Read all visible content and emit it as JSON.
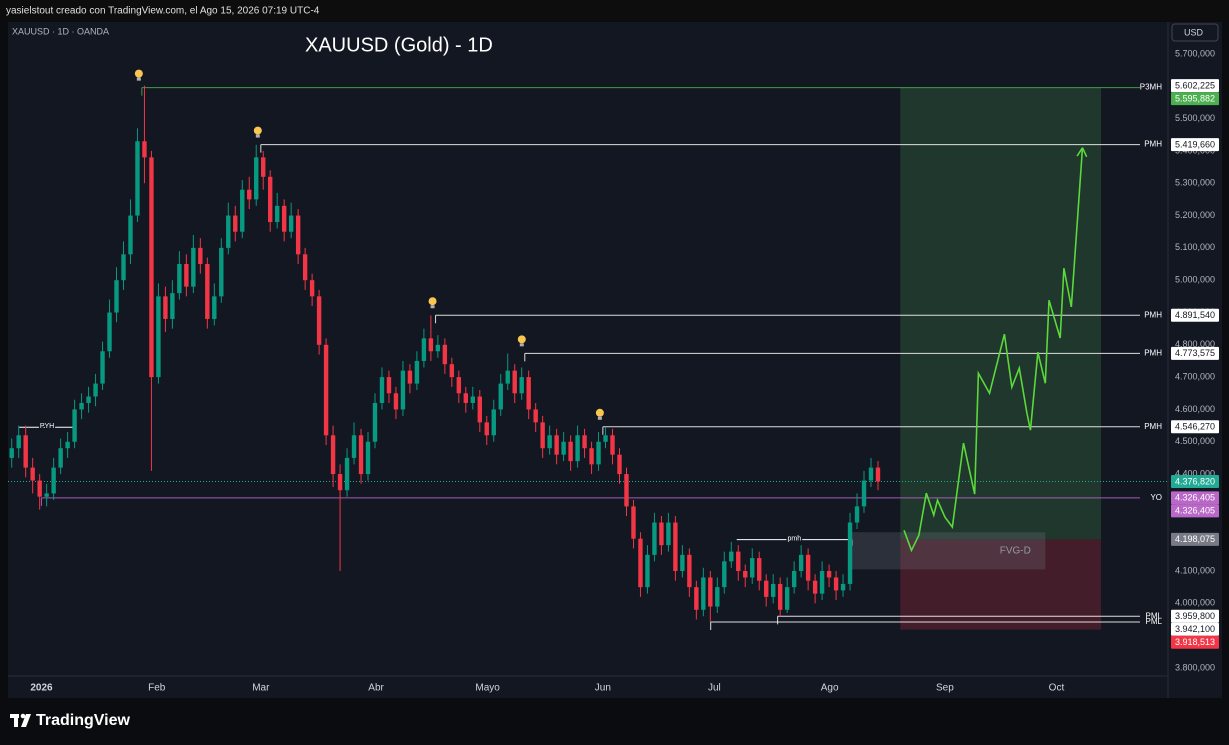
{
  "header": "yasielstout creado con TradingView.com, el Ago 15, 2026 07:19 UTC-4",
  "branding": "TradingView",
  "chart_data": {
    "type": "candlestick",
    "title": "XAUUSD (Gold) - 1D",
    "symbol": "XAUUSD · 1D · OANDA",
    "currency": "USD",
    "up_color": "#089981",
    "down_color": "#f23645",
    "xlim": [
      -9,
      303
    ],
    "xticks": [
      {
        "value": 0,
        "label": "2026"
      },
      {
        "value": 31,
        "label": "Feb"
      },
      {
        "value": 59,
        "label": "Mar"
      },
      {
        "value": 90,
        "label": "Abr"
      },
      {
        "value": 120,
        "label": "Mayo"
      },
      {
        "value": 151,
        "label": "Jun"
      },
      {
        "value": 181,
        "label": "Jul"
      },
      {
        "value": 212,
        "label": "Ago"
      },
      {
        "value": 243,
        "label": "Sep"
      },
      {
        "value": 273,
        "label": "Oct"
      }
    ],
    "ylim": [
      3707,
      5799
    ],
    "yticks": [
      {
        "value": 3800,
        "label": "3.800,000"
      },
      {
        "value": 3900,
        "label": "3.900,000"
      },
      {
        "value": 4000,
        "label": "4.000,000"
      },
      {
        "value": 4100,
        "label": "4.100,000"
      },
      {
        "value": 4200,
        "label": "4.200,000"
      },
      {
        "value": 4300,
        "label": "4.300,000"
      },
      {
        "value": 4400,
        "label": "4.400,000"
      },
      {
        "value": 4500,
        "label": "4.500,000"
      },
      {
        "value": 4600,
        "label": "4.600,000"
      },
      {
        "value": 4700,
        "label": "4.700,000"
      },
      {
        "value": 4800,
        "label": "4.800,000"
      },
      {
        "value": 4900,
        "label": "4.900,000"
      },
      {
        "value": 5000,
        "label": "5.000,000"
      },
      {
        "value": 5100,
        "label": "5.100,000"
      },
      {
        "value": 5200,
        "label": "5.200,000"
      },
      {
        "value": 5300,
        "label": "5.300,000"
      },
      {
        "value": 5400,
        "label": "5.400,000"
      },
      {
        "value": 5500,
        "label": "5.500,000"
      },
      {
        "value": 5600,
        "label": "5.600,000"
      },
      {
        "value": 5700,
        "label": "5.700,000"
      }
    ],
    "candles": [
      [
        4450,
        4510,
        4420,
        4480
      ],
      [
        4480,
        4550,
        4450,
        4520
      ],
      [
        4520,
        4550,
        4390,
        4420
      ],
      [
        4420,
        4450,
        4340,
        4380
      ],
      [
        4380,
        4400,
        4290,
        4330
      ],
      [
        4330,
        4370,
        4300,
        4340
      ],
      [
        4340,
        4450,
        4320,
        4420
      ],
      [
        4420,
        4510,
        4400,
        4480
      ],
      [
        4480,
        4530,
        4450,
        4500
      ],
      [
        4500,
        4630,
        4480,
        4600
      ],
      [
        4600,
        4650,
        4570,
        4620
      ],
      [
        4620,
        4670,
        4590,
        4640
      ],
      [
        4640,
        4710,
        4610,
        4680
      ],
      [
        4680,
        4810,
        4660,
        4780
      ],
      [
        4780,
        4940,
        4760,
        4900
      ],
      [
        4900,
        5040,
        4870,
        5000
      ],
      [
        5000,
        5120,
        4970,
        5080
      ],
      [
        5080,
        5250,
        5050,
        5200
      ],
      [
        5200,
        5470,
        5180,
        5430
      ],
      [
        5430,
        5602,
        5300,
        5380
      ],
      [
        5380,
        5400,
        4410,
        4700
      ],
      [
        4700,
        4990,
        4680,
        4950
      ],
      [
        4950,
        4980,
        4840,
        4880
      ],
      [
        4880,
        5000,
        4850,
        4960
      ],
      [
        4960,
        5090,
        4940,
        5050
      ],
      [
        5050,
        5080,
        4950,
        4980
      ],
      [
        4980,
        5140,
        4960,
        5100
      ],
      [
        5100,
        5130,
        5020,
        5050
      ],
      [
        5050,
        5070,
        4850,
        4880
      ],
      [
        4880,
        4990,
        4860,
        4950
      ],
      [
        4950,
        5130,
        4930,
        5100
      ],
      [
        5100,
        5240,
        5080,
        5200
      ],
      [
        5200,
        5230,
        5120,
        5150
      ],
      [
        5150,
        5310,
        5130,
        5280
      ],
      [
        5280,
        5320,
        5220,
        5250
      ],
      [
        5250,
        5419,
        5230,
        5380
      ],
      [
        5380,
        5400,
        5280,
        5320
      ],
      [
        5320,
        5340,
        5150,
        5180
      ],
      [
        5180,
        5270,
        5160,
        5230
      ],
      [
        5230,
        5250,
        5120,
        5150
      ],
      [
        5150,
        5240,
        5130,
        5200
      ],
      [
        5200,
        5220,
        5050,
        5080
      ],
      [
        5080,
        5100,
        4970,
        5000
      ],
      [
        5000,
        5020,
        4920,
        4950
      ],
      [
        4950,
        4970,
        4770,
        4800
      ],
      [
        4800,
        4820,
        4490,
        4520
      ],
      [
        4520,
        4550,
        4360,
        4400
      ],
      [
        4400,
        4430,
        4100,
        4350
      ],
      [
        4350,
        4480,
        4330,
        4450
      ],
      [
        4450,
        4560,
        4430,
        4520
      ],
      [
        4520,
        4540,
        4370,
        4400
      ],
      [
        4400,
        4530,
        4380,
        4500
      ],
      [
        4500,
        4650,
        4480,
        4620
      ],
      [
        4620,
        4730,
        4600,
        4700
      ],
      [
        4700,
        4720,
        4620,
        4650
      ],
      [
        4650,
        4670,
        4570,
        4600
      ],
      [
        4600,
        4750,
        4580,
        4720
      ],
      [
        4720,
        4740,
        4650,
        4680
      ],
      [
        4680,
        4780,
        4660,
        4750
      ],
      [
        4750,
        4850,
        4730,
        4820
      ],
      [
        4820,
        4891,
        4750,
        4780
      ],
      [
        4780,
        4830,
        4760,
        4800
      ],
      [
        4800,
        4820,
        4710,
        4740
      ],
      [
        4740,
        4760,
        4670,
        4700
      ],
      [
        4700,
        4720,
        4620,
        4650
      ],
      [
        4650,
        4670,
        4590,
        4620
      ],
      [
        4620,
        4670,
        4600,
        4640
      ],
      [
        4640,
        4660,
        4530,
        4560
      ],
      [
        4560,
        4580,
        4490,
        4520
      ],
      [
        4520,
        4630,
        4500,
        4600
      ],
      [
        4600,
        4710,
        4580,
        4680
      ],
      [
        4680,
        4773,
        4660,
        4720
      ],
      [
        4720,
        4740,
        4620,
        4650
      ],
      [
        4650,
        4730,
        4630,
        4700
      ],
      [
        4700,
        4720,
        4570,
        4600
      ],
      [
        4600,
        4620,
        4530,
        4560
      ],
      [
        4560,
        4580,
        4450,
        4480
      ],
      [
        4480,
        4550,
        4460,
        4520
      ],
      [
        4520,
        4540,
        4430,
        4460
      ],
      [
        4460,
        4530,
        4440,
        4500
      ],
      [
        4500,
        4520,
        4410,
        4440
      ],
      [
        4440,
        4550,
        4420,
        4520
      ],
      [
        4520,
        4540,
        4450,
        4480
      ],
      [
        4480,
        4500,
        4400,
        4430
      ],
      [
        4430,
        4530,
        4410,
        4500
      ],
      [
        4500,
        4546,
        4480,
        4520
      ],
      [
        4520,
        4540,
        4430,
        4460
      ],
      [
        4460,
        4480,
        4370,
        4400
      ],
      [
        4400,
        4420,
        4270,
        4300
      ],
      [
        4300,
        4320,
        4170,
        4200
      ],
      [
        4200,
        4220,
        4020,
        4050
      ],
      [
        4050,
        4180,
        4030,
        4150
      ],
      [
        4150,
        4280,
        4130,
        4250
      ],
      [
        4250,
        4270,
        4150,
        4180
      ],
      [
        4180,
        4280,
        4160,
        4250
      ],
      [
        4250,
        4270,
        4070,
        4100
      ],
      [
        4100,
        4180,
        4080,
        4150
      ],
      [
        4150,
        4170,
        4020,
        4050
      ],
      [
        4050,
        4070,
        3950,
        3980
      ],
      [
        3980,
        4110,
        3960,
        4080
      ],
      [
        4080,
        4100,
        3942,
        3990
      ],
      [
        3990,
        4080,
        3970,
        4050
      ],
      [
        4050,
        4160,
        4030,
        4130
      ],
      [
        4130,
        4190,
        4110,
        4160
      ],
      [
        4160,
        4180,
        4070,
        4100
      ],
      [
        4100,
        4120,
        4050,
        4080
      ],
      [
        4080,
        4170,
        4060,
        4140
      ],
      [
        4140,
        4160,
        4040,
        4070
      ],
      [
        4070,
        4090,
        3990,
        4020
      ],
      [
        4020,
        4090,
        4000,
        4060
      ],
      [
        4060,
        4080,
        3960,
        3980
      ],
      [
        3980,
        4080,
        3970,
        4050
      ],
      [
        4050,
        4130,
        4030,
        4100
      ],
      [
        4100,
        4180,
        4080,
        4150
      ],
      [
        4150,
        4170,
        4040,
        4070
      ],
      [
        4070,
        4090,
        4000,
        4030
      ],
      [
        4030,
        4130,
        4010,
        4100
      ],
      [
        4100,
        4120,
        4050,
        4080
      ],
      [
        4080,
        4100,
        4010,
        4040
      ],
      [
        4040,
        4090,
        4020,
        4060
      ],
      [
        4060,
        4280,
        4040,
        4250
      ],
      [
        4250,
        4340,
        4230,
        4300
      ],
      [
        4300,
        4410,
        4280,
        4380
      ],
      [
        4380,
        4450,
        4360,
        4420
      ],
      [
        4420,
        4440,
        4350,
        4377
      ]
    ],
    "levels": [
      {
        "name": "P3MH",
        "value": 5595.882,
        "label": "5.595,882",
        "from": 27,
        "color": "#4caf50"
      },
      {
        "name": "PMH",
        "value": 5419.66,
        "label": "5.419,660",
        "from": 59,
        "color": "#ffffff"
      },
      {
        "name": "PMH",
        "value": 4891.54,
        "label": "4.891,540",
        "from": 106,
        "color": "#ffffff"
      },
      {
        "name": "PMH",
        "value": 4773.575,
        "label": "4.773,575",
        "from": 130,
        "color": "#ffffff"
      },
      {
        "name": "PMH",
        "value": 4546.27,
        "label": "4.546,270",
        "from": 151,
        "color": "#ffffff"
      },
      {
        "name": "YO",
        "value": 4326.405,
        "label": "4.326,405",
        "from": 0,
        "color": "#ba68c8"
      },
      {
        "name": "PML",
        "value": 3959.8,
        "label": "3.959,800",
        "from": 198,
        "color": "#ffffff"
      },
      {
        "name": "PML",
        "value": 3942.1,
        "label": "3.942,100",
        "from": 180,
        "color": "#ffffff"
      }
    ],
    "guides": [
      {
        "name": "PYH",
        "value": 4545,
        "from": -6,
        "to": 9
      },
      {
        "name": "pmh",
        "value": 4197,
        "from": 187,
        "to": 218
      }
    ],
    "price_tags": [
      {
        "value": 5602.225,
        "label": "5.602,225",
        "color": "#ffffff"
      },
      {
        "value": 4376.82,
        "label": "4.376,820",
        "color": "#22ab94"
      },
      {
        "value": 4326.405,
        "label": "4.326,405",
        "color": "#ba68c8"
      },
      {
        "value": 4198.075,
        "label": "4.198,075",
        "color": "#787b86"
      },
      {
        "value": 3918.513,
        "label": "3.918,513",
        "color": "#f23645"
      }
    ],
    "position": {
      "x": [
        231,
        285
      ],
      "target": 5595.882,
      "entry": 4198.075,
      "stop": 3918.513
    },
    "fvg": {
      "label": "FVG-D",
      "x": [
        218,
        270
      ],
      "top": 4220,
      "bottom": 4105
    },
    "projection": {
      "color": "#5bd83a",
      "x": [
        232,
        234,
        236,
        238,
        240,
        241,
        243,
        245,
        248,
        251,
        252,
        255,
        259,
        261,
        263,
        265,
        266,
        268,
        270,
        271,
        274,
        275,
        277,
        280
      ],
      "y": [
        4226,
        4164,
        4211,
        4341,
        4273,
        4319,
        4267,
        4236,
        4496,
        4338,
        4712,
        4650,
        4833,
        4669,
        4728,
        4592,
        4536,
        4777,
        4681,
        4938,
        4821,
        5037,
        4917,
        5410
      ]
    }
  }
}
